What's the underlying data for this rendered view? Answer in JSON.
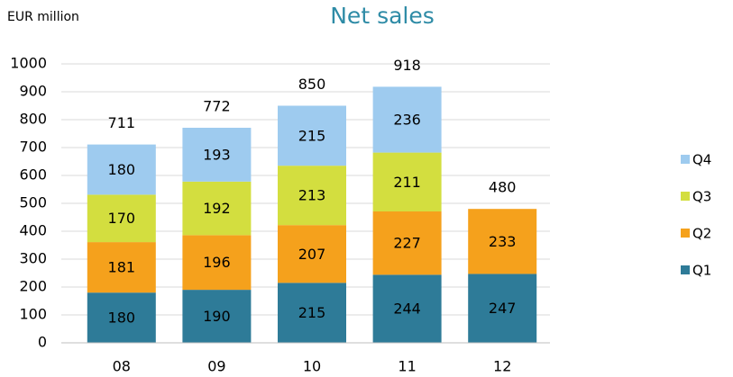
{
  "chart_data": {
    "type": "stacked_bar",
    "title": "Net sales",
    "unit_label": "EUR million",
    "categories": [
      "08",
      "09",
      "10",
      "11",
      "12"
    ],
    "series": [
      {
        "name": "Q1",
        "color": "#2e7b98",
        "values": [
          180,
          190,
          215,
          244,
          247
        ]
      },
      {
        "name": "Q2",
        "color": "#f5a11c",
        "values": [
          181,
          196,
          207,
          227,
          233
        ]
      },
      {
        "name": "Q3",
        "color": "#d3de3f",
        "values": [
          170,
          192,
          213,
          211,
          null
        ]
      },
      {
        "name": "Q4",
        "color": "#9ecbef",
        "values": [
          180,
          193,
          215,
          236,
          null
        ]
      }
    ],
    "totals": [
      711,
      772,
      850,
      918,
      480
    ],
    "ylim": [
      0,
      1000
    ],
    "yticks": [
      0,
      100,
      200,
      300,
      400,
      500,
      600,
      700,
      800,
      900,
      1000
    ],
    "grid": true,
    "legend": "right"
  }
}
